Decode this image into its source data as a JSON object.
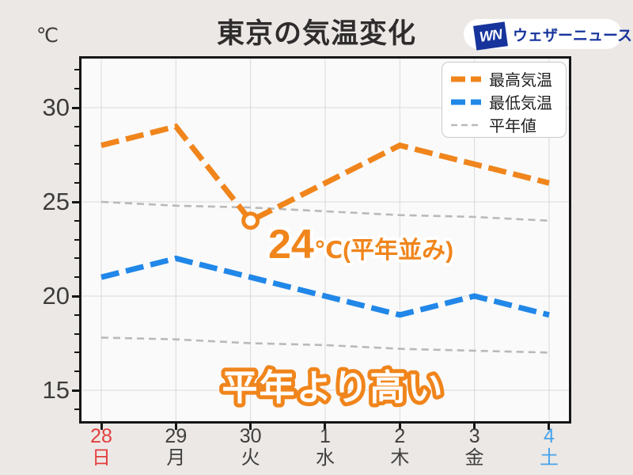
{
  "header": {
    "unit_label": "℃",
    "title": "東京の気温変化",
    "logo_mark": "WN",
    "logo_text": "ウェザーニュース"
  },
  "legend": {
    "items": [
      {
        "label": "最高気温",
        "color": "#f0851c",
        "style": "thick"
      },
      {
        "label": "最低気温",
        "color": "#2187e8",
        "style": "thick"
      },
      {
        "label": "平年値",
        "color": "#b9b9b9",
        "style": "thin"
      }
    ]
  },
  "annotations": {
    "highlight_value": "24",
    "highlight_suffix": "℃(平年並み)",
    "comparison_text": "平年より高い",
    "accent_color": "#f0851c"
  },
  "x_axis": {
    "days": [
      {
        "date": "28",
        "weekday": "日",
        "color": "#e23e3e"
      },
      {
        "date": "29",
        "weekday": "月",
        "color": "#3f3f3f"
      },
      {
        "date": "30",
        "weekday": "火",
        "color": "#3f3f3f"
      },
      {
        "date": "1",
        "weekday": "水",
        "color": "#3f3f3f"
      },
      {
        "date": "2",
        "weekday": "木",
        "color": "#3f3f3f"
      },
      {
        "date": "3",
        "weekday": "金",
        "color": "#3f3f3f"
      },
      {
        "date": "4",
        "weekday": "土",
        "color": "#47a3ea"
      }
    ]
  },
  "y_axis": {
    "tick_values": [
      30,
      25,
      20,
      15
    ],
    "tick_labels": [
      "30",
      "25",
      "20",
      "15"
    ],
    "minor_tick_min": 14,
    "minor_tick_max": 32
  },
  "chart_data": {
    "type": "line",
    "title": "東京の気温変化",
    "categories": [
      "28(日)",
      "29(月)",
      "30(火)",
      "1(水)",
      "2(木)",
      "3(金)",
      "4(土)"
    ],
    "series": [
      {
        "name": "最高気温",
        "color": "#f0851c",
        "line": "dashed-thick",
        "values": [
          28,
          29,
          24,
          26,
          28,
          27,
          26
        ]
      },
      {
        "name": "最低気温",
        "color": "#2187e8",
        "line": "dashed-thick",
        "values": [
          21,
          22,
          21,
          20,
          19,
          20,
          19
        ]
      },
      {
        "name": "平年値(最高)",
        "color": "#b9b9b9",
        "line": "dashed-thin",
        "values": [
          25,
          24.8,
          24.7,
          24.5,
          24.3,
          24.2,
          24
        ]
      },
      {
        "name": "平年値(最低)",
        "color": "#b9b9b9",
        "line": "dashed-thin",
        "values": [
          17.8,
          17.7,
          17.5,
          17.4,
          17.2,
          17.1,
          17
        ]
      }
    ],
    "ylabel": "℃",
    "yticks": [
      15,
      20,
      25,
      30
    ],
    "ylim": [
      13.3,
      32.6
    ],
    "grid": true,
    "legend_position": "upper right",
    "highlight": {
      "series_index": 0,
      "day_index": 2,
      "value": 24,
      "label": "24℃(平年並み)"
    }
  }
}
